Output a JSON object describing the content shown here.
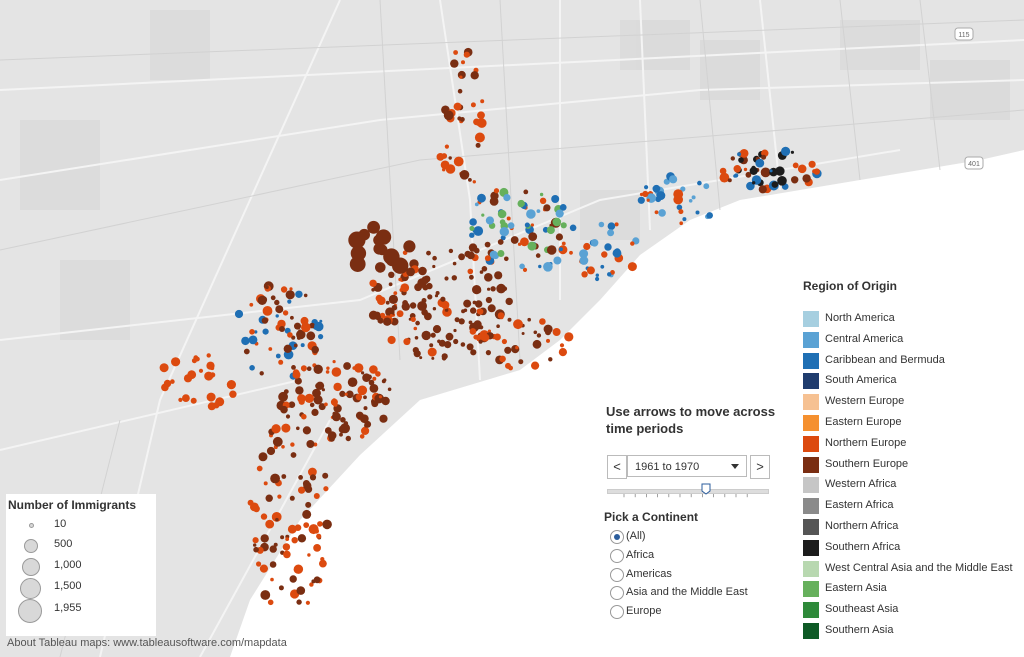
{
  "map": {
    "land_color": "#e4e4e4",
    "water_color": "#ffffff",
    "road_color": "#cfcfcf",
    "highway_shields": [
      "115",
      "401"
    ]
  },
  "attribution": "About Tableau maps: www.tableausoftware.com/mapdata",
  "size_legend": {
    "title": "Number of Immigrants",
    "items": [
      {
        "label": "10",
        "value": 10
      },
      {
        "label": "500",
        "value": 500
      },
      {
        "label": "1,000",
        "value": 1000
      },
      {
        "label": "1,500",
        "value": 1500
      },
      {
        "label": "1,955",
        "value": 1955
      }
    ]
  },
  "region_legend": {
    "title": "Region of Origin",
    "items": [
      {
        "label": "North America",
        "color": "#a6cfe0"
      },
      {
        "label": "Central America",
        "color": "#5aa2d4"
      },
      {
        "label": "Caribbean and Bermuda",
        "color": "#1f6fb4"
      },
      {
        "label": "South America",
        "color": "#1f3c6e"
      },
      {
        "label": "Western Europe",
        "color": "#f6c192"
      },
      {
        "label": "Eastern Europe",
        "color": "#f5902f"
      },
      {
        "label": "Northern Europe",
        "color": "#dc4a0f"
      },
      {
        "label": "Southern Europe",
        "color": "#7a2e12"
      },
      {
        "label": "Western Africa",
        "color": "#c6c6c6"
      },
      {
        "label": "Eastern Africa",
        "color": "#8a8a8a"
      },
      {
        "label": "Northern Africa",
        "color": "#555555"
      },
      {
        "label": "Southern Africa",
        "color": "#1c1c1c"
      },
      {
        "label": "West Central Asia and the Middle East",
        "color": "#b8d8b0"
      },
      {
        "label": "Eastern Asia",
        "color": "#66b05c"
      },
      {
        "label": "Southeast Asia",
        "color": "#2e8a3a"
      },
      {
        "label": "Southern Asia",
        "color": "#0e5a26"
      }
    ]
  },
  "time_control": {
    "instruction": "Use arrows to move across time periods",
    "prev_symbol": "<",
    "next_symbol": ">",
    "selected_period": "1961 to 1970",
    "slider_position": 0.62
  },
  "continent_filter": {
    "title": "Pick a Continent",
    "options": [
      {
        "label": "(All)",
        "selected": true
      },
      {
        "label": "Africa",
        "selected": false
      },
      {
        "label": "Americas",
        "selected": false
      },
      {
        "label": "Asia and the Middle East",
        "selected": false
      },
      {
        "label": "Europe",
        "selected": false
      }
    ]
  }
}
